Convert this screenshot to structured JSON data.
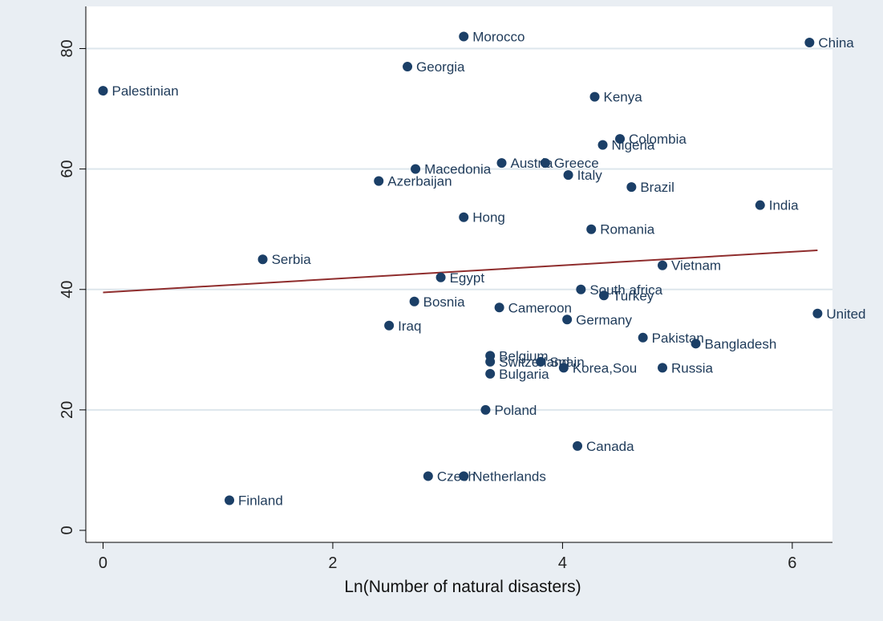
{
  "chart_data": {
    "type": "scatter",
    "title": "",
    "xlabel": "Ln(Number of natural disasters)",
    "ylabel": "",
    "xlim": [
      -0.15,
      6.35
    ],
    "ylim": [
      -2,
      87
    ],
    "xticks": [
      0,
      2,
      4,
      6
    ],
    "yticks": [
      0,
      20,
      40,
      60,
      80
    ],
    "grid": true,
    "legend": "none",
    "colors": {
      "point": "#1b3f67",
      "fit_line": "#8f2d2d",
      "plot_bg": "#ffffff",
      "grid": "#dde6ec"
    },
    "fit_line": {
      "x": [
        0,
        6.22
      ],
      "y": [
        39.5,
        46.5
      ]
    },
    "points": [
      {
        "label": "Morocco",
        "x": 3.14,
        "y": 82
      },
      {
        "label": "China",
        "x": 6.15,
        "y": 81
      },
      {
        "label": "Georgia",
        "x": 2.65,
        "y": 77
      },
      {
        "label": "Palestinian",
        "x": 0.0,
        "y": 73
      },
      {
        "label": "Kenya",
        "x": 4.28,
        "y": 72
      },
      {
        "label": "Colombia",
        "x": 4.5,
        "y": 65
      },
      {
        "label": "Nigeria",
        "x": 4.35,
        "y": 64
      },
      {
        "label": "Austria",
        "x": 3.47,
        "y": 61
      },
      {
        "label": "Greece",
        "x": 3.85,
        "y": 61
      },
      {
        "label": "Macedonia",
        "x": 2.72,
        "y": 60
      },
      {
        "label": "Italy",
        "x": 4.05,
        "y": 59
      },
      {
        "label": "Azerbaijan",
        "x": 2.4,
        "y": 58
      },
      {
        "label": "Brazil",
        "x": 4.6,
        "y": 57
      },
      {
        "label": "India",
        "x": 5.72,
        "y": 54
      },
      {
        "label": "Hong",
        "x": 3.14,
        "y": 52
      },
      {
        "label": "Romania",
        "x": 4.25,
        "y": 50
      },
      {
        "label": "Serbia",
        "x": 1.39,
        "y": 45
      },
      {
        "label": "Vietnam",
        "x": 4.87,
        "y": 44
      },
      {
        "label": "Egypt",
        "x": 2.94,
        "y": 42
      },
      {
        "label": "South africa",
        "x": 4.16,
        "y": 40
      },
      {
        "label": "Turkey",
        "x": 4.36,
        "y": 39
      },
      {
        "label": "Bosnia",
        "x": 2.71,
        "y": 38
      },
      {
        "label": "Cameroon",
        "x": 3.45,
        "y": 37
      },
      {
        "label": "United",
        "x": 6.22,
        "y": 36
      },
      {
        "label": "Germany",
        "x": 4.04,
        "y": 35
      },
      {
        "label": "Iraq",
        "x": 2.49,
        "y": 34
      },
      {
        "label": "Pakistan",
        "x": 4.7,
        "y": 32
      },
      {
        "label": "Bangladesh",
        "x": 5.16,
        "y": 31
      },
      {
        "label": "Belgium",
        "x": 3.37,
        "y": 29
      },
      {
        "label": "Switzerland",
        "x": 3.37,
        "y": 28
      },
      {
        "label": "Spain",
        "x": 3.81,
        "y": 28
      },
      {
        "label": "Korea,Sou",
        "x": 4.01,
        "y": 27
      },
      {
        "label": "Russia",
        "x": 4.87,
        "y": 27
      },
      {
        "label": "Bulgaria",
        "x": 3.37,
        "y": 26
      },
      {
        "label": "Poland",
        "x": 3.33,
        "y": 20
      },
      {
        "label": "Canada",
        "x": 4.13,
        "y": 14
      },
      {
        "label": "Czech",
        "x": 2.83,
        "y": 9
      },
      {
        "label": "Netherlands",
        "x": 3.14,
        "y": 9
      },
      {
        "label": "Finland",
        "x": 1.1,
        "y": 5
      }
    ]
  }
}
